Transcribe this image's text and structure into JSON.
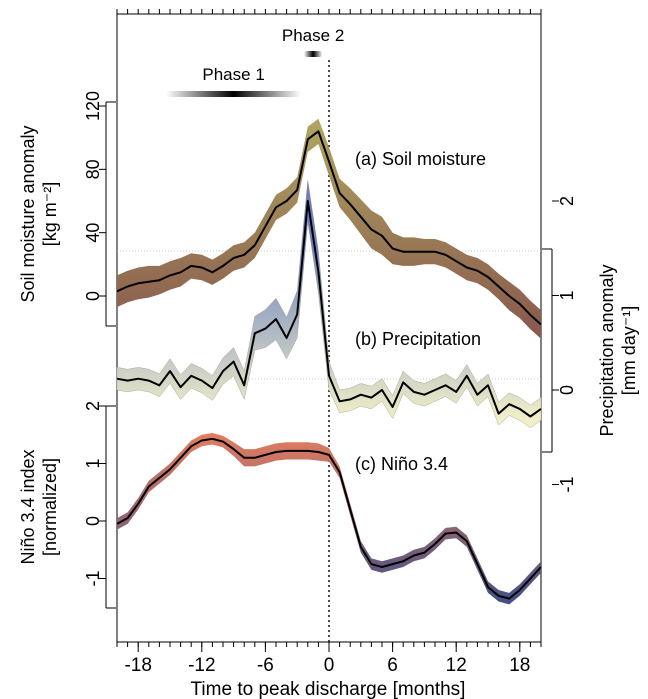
{
  "chart_data": {
    "type": "line",
    "x_axis": {
      "label": "Time to peak discharge [months]",
      "ticks": [
        -18,
        -12,
        -6,
        0,
        6,
        12,
        18
      ],
      "tick_labels": [
        "-18",
        "-12",
        "-6",
        "0",
        "6",
        "12",
        "18"
      ],
      "range": [
        -20,
        20
      ],
      "minor_step": 1
    },
    "phases": [
      {
        "label": "Phase 1",
        "start": -15,
        "end": -3
      },
      {
        "label": "Phase 2",
        "start": -2,
        "end": -1
      }
    ],
    "panels": [
      {
        "id": "soil-moisture",
        "label": "(a) Soil moisture",
        "axis_side": "left",
        "axis_label_lines": [
          "Soil moisture anomaly",
          "[kg m⁻²]"
        ],
        "ticks": [
          0,
          40,
          80,
          120
        ],
        "tick_labels": [
          "0",
          "40",
          "80",
          "120"
        ],
        "range": [
          -20,
          140
        ],
        "band_colors": [
          "#8a5a4e",
          "#b9bb66"
        ],
        "x": [
          -20,
          -19,
          -18,
          -17,
          -16,
          -15,
          -14,
          -13,
          -12,
          -11,
          -10,
          -9,
          -8,
          -7,
          -6,
          -5,
          -4,
          -3,
          -2,
          -1,
          0,
          1,
          2,
          3,
          4,
          5,
          6,
          7,
          8,
          9,
          10,
          11,
          12,
          13,
          14,
          15,
          16,
          17,
          18,
          19,
          20
        ],
        "y": [
          3,
          6,
          8,
          9,
          10,
          13,
          15,
          19,
          18,
          15,
          19,
          24,
          26,
          32,
          44,
          56,
          60,
          67,
          99,
          104,
          85,
          65,
          58,
          50,
          42,
          38,
          30,
          28,
          28,
          28,
          28,
          26,
          22,
          18,
          16,
          12,
          6,
          0,
          -5,
          -12,
          -18
        ],
        "err": [
          10,
          10,
          10,
          10,
          9,
          9,
          9,
          8,
          8,
          8,
          8,
          8,
          8,
          8,
          8,
          8,
          8,
          8,
          8,
          8,
          9,
          9,
          10,
          11,
          12,
          12,
          10,
          9,
          9,
          8,
          8,
          8,
          8,
          8,
          8,
          8,
          8,
          9,
          9,
          9,
          9
        ]
      },
      {
        "id": "precipitation",
        "label": "(b) Precipitation",
        "axis_side": "right",
        "axis_label_lines": [
          "Precipitation anomaly",
          "[mm day⁻¹]"
        ],
        "ticks": [
          -1,
          0,
          1,
          2
        ],
        "tick_labels": [
          "-1",
          "0",
          "1",
          "2"
        ],
        "range": [
          -1,
          2.5
        ],
        "band_colors": [
          "#f2f0c8",
          "#6b7fc0"
        ],
        "x": [
          -20,
          -19,
          -18,
          -17,
          -16,
          -15,
          -14,
          -13,
          -12,
          -11,
          -10,
          -9,
          -8,
          -7,
          -6,
          -5,
          -4,
          -3,
          -2,
          -1,
          0,
          1,
          2,
          3,
          4,
          5,
          6,
          7,
          8,
          9,
          10,
          11,
          12,
          13,
          14,
          15,
          16,
          17,
          18,
          19,
          20
        ],
        "y": [
          0.12,
          0.1,
          0.12,
          0.1,
          0.05,
          0.2,
          0.03,
          0.15,
          0.1,
          0.02,
          0.2,
          0.3,
          0.05,
          0.6,
          0.65,
          0.75,
          0.55,
          0.8,
          2.0,
          1.25,
          0.15,
          -0.12,
          -0.1,
          -0.05,
          -0.08,
          0.0,
          -0.18,
          0.08,
          -0.02,
          -0.05,
          0.0,
          0.05,
          -0.02,
          0.15,
          -0.05,
          0.05,
          -0.25,
          -0.15,
          -0.2,
          -0.28,
          -0.2
        ],
        "err": [
          0.12,
          0.12,
          0.12,
          0.12,
          0.12,
          0.13,
          0.13,
          0.13,
          0.13,
          0.13,
          0.14,
          0.15,
          0.15,
          0.18,
          0.2,
          0.22,
          0.22,
          0.25,
          0.22,
          0.22,
          0.15,
          0.12,
          0.12,
          0.12,
          0.12,
          0.12,
          0.12,
          0.12,
          0.12,
          0.12,
          0.12,
          0.12,
          0.12,
          0.12,
          0.12,
          0.12,
          0.12,
          0.12,
          0.12,
          0.12,
          0.12
        ]
      },
      {
        "id": "nino34",
        "label": "(c) Niño 3.4",
        "axis_side": "left",
        "axis_label_lines": [
          "Niño 3.4 index",
          "[normalized]"
        ],
        "ticks": [
          -1,
          0,
          1,
          2
        ],
        "tick_labels": [
          "-1",
          "0",
          "1",
          "2"
        ],
        "range": [
          -1.5,
          2.2
        ],
        "band_colors": [
          "#3c4e86",
          "#f0805c"
        ],
        "x": [
          -20,
          -19,
          -18,
          -17,
          -16,
          -15,
          -14,
          -13,
          -12,
          -11,
          -10,
          -9,
          -8,
          -7,
          -6,
          -5,
          -4,
          -3,
          -2,
          -1,
          0,
          1,
          2,
          3,
          4,
          5,
          6,
          7,
          8,
          9,
          10,
          11,
          12,
          13,
          14,
          15,
          16,
          17,
          18,
          19,
          20
        ],
        "y": [
          -0.05,
          0.05,
          0.3,
          0.6,
          0.75,
          0.9,
          1.1,
          1.3,
          1.4,
          1.43,
          1.38,
          1.25,
          1.1,
          1.1,
          1.15,
          1.2,
          1.22,
          1.22,
          1.22,
          1.2,
          1.15,
          0.85,
          0.2,
          -0.45,
          -0.75,
          -0.8,
          -0.75,
          -0.7,
          -0.6,
          -0.55,
          -0.4,
          -0.22,
          -0.2,
          -0.35,
          -0.75,
          -1.15,
          -1.3,
          -1.35,
          -1.2,
          -1.0,
          -0.8
        ],
        "err": [
          0.1,
          0.1,
          0.1,
          0.1,
          0.1,
          0.1,
          0.1,
          0.1,
          0.1,
          0.1,
          0.1,
          0.12,
          0.15,
          0.15,
          0.15,
          0.15,
          0.15,
          0.15,
          0.15,
          0.15,
          0.12,
          0.1,
          0.1,
          0.1,
          0.1,
          0.1,
          0.1,
          0.1,
          0.1,
          0.1,
          0.1,
          0.1,
          0.1,
          0.1,
          0.1,
          0.1,
          0.1,
          0.1,
          0.1,
          0.1,
          0.1
        ]
      }
    ]
  }
}
